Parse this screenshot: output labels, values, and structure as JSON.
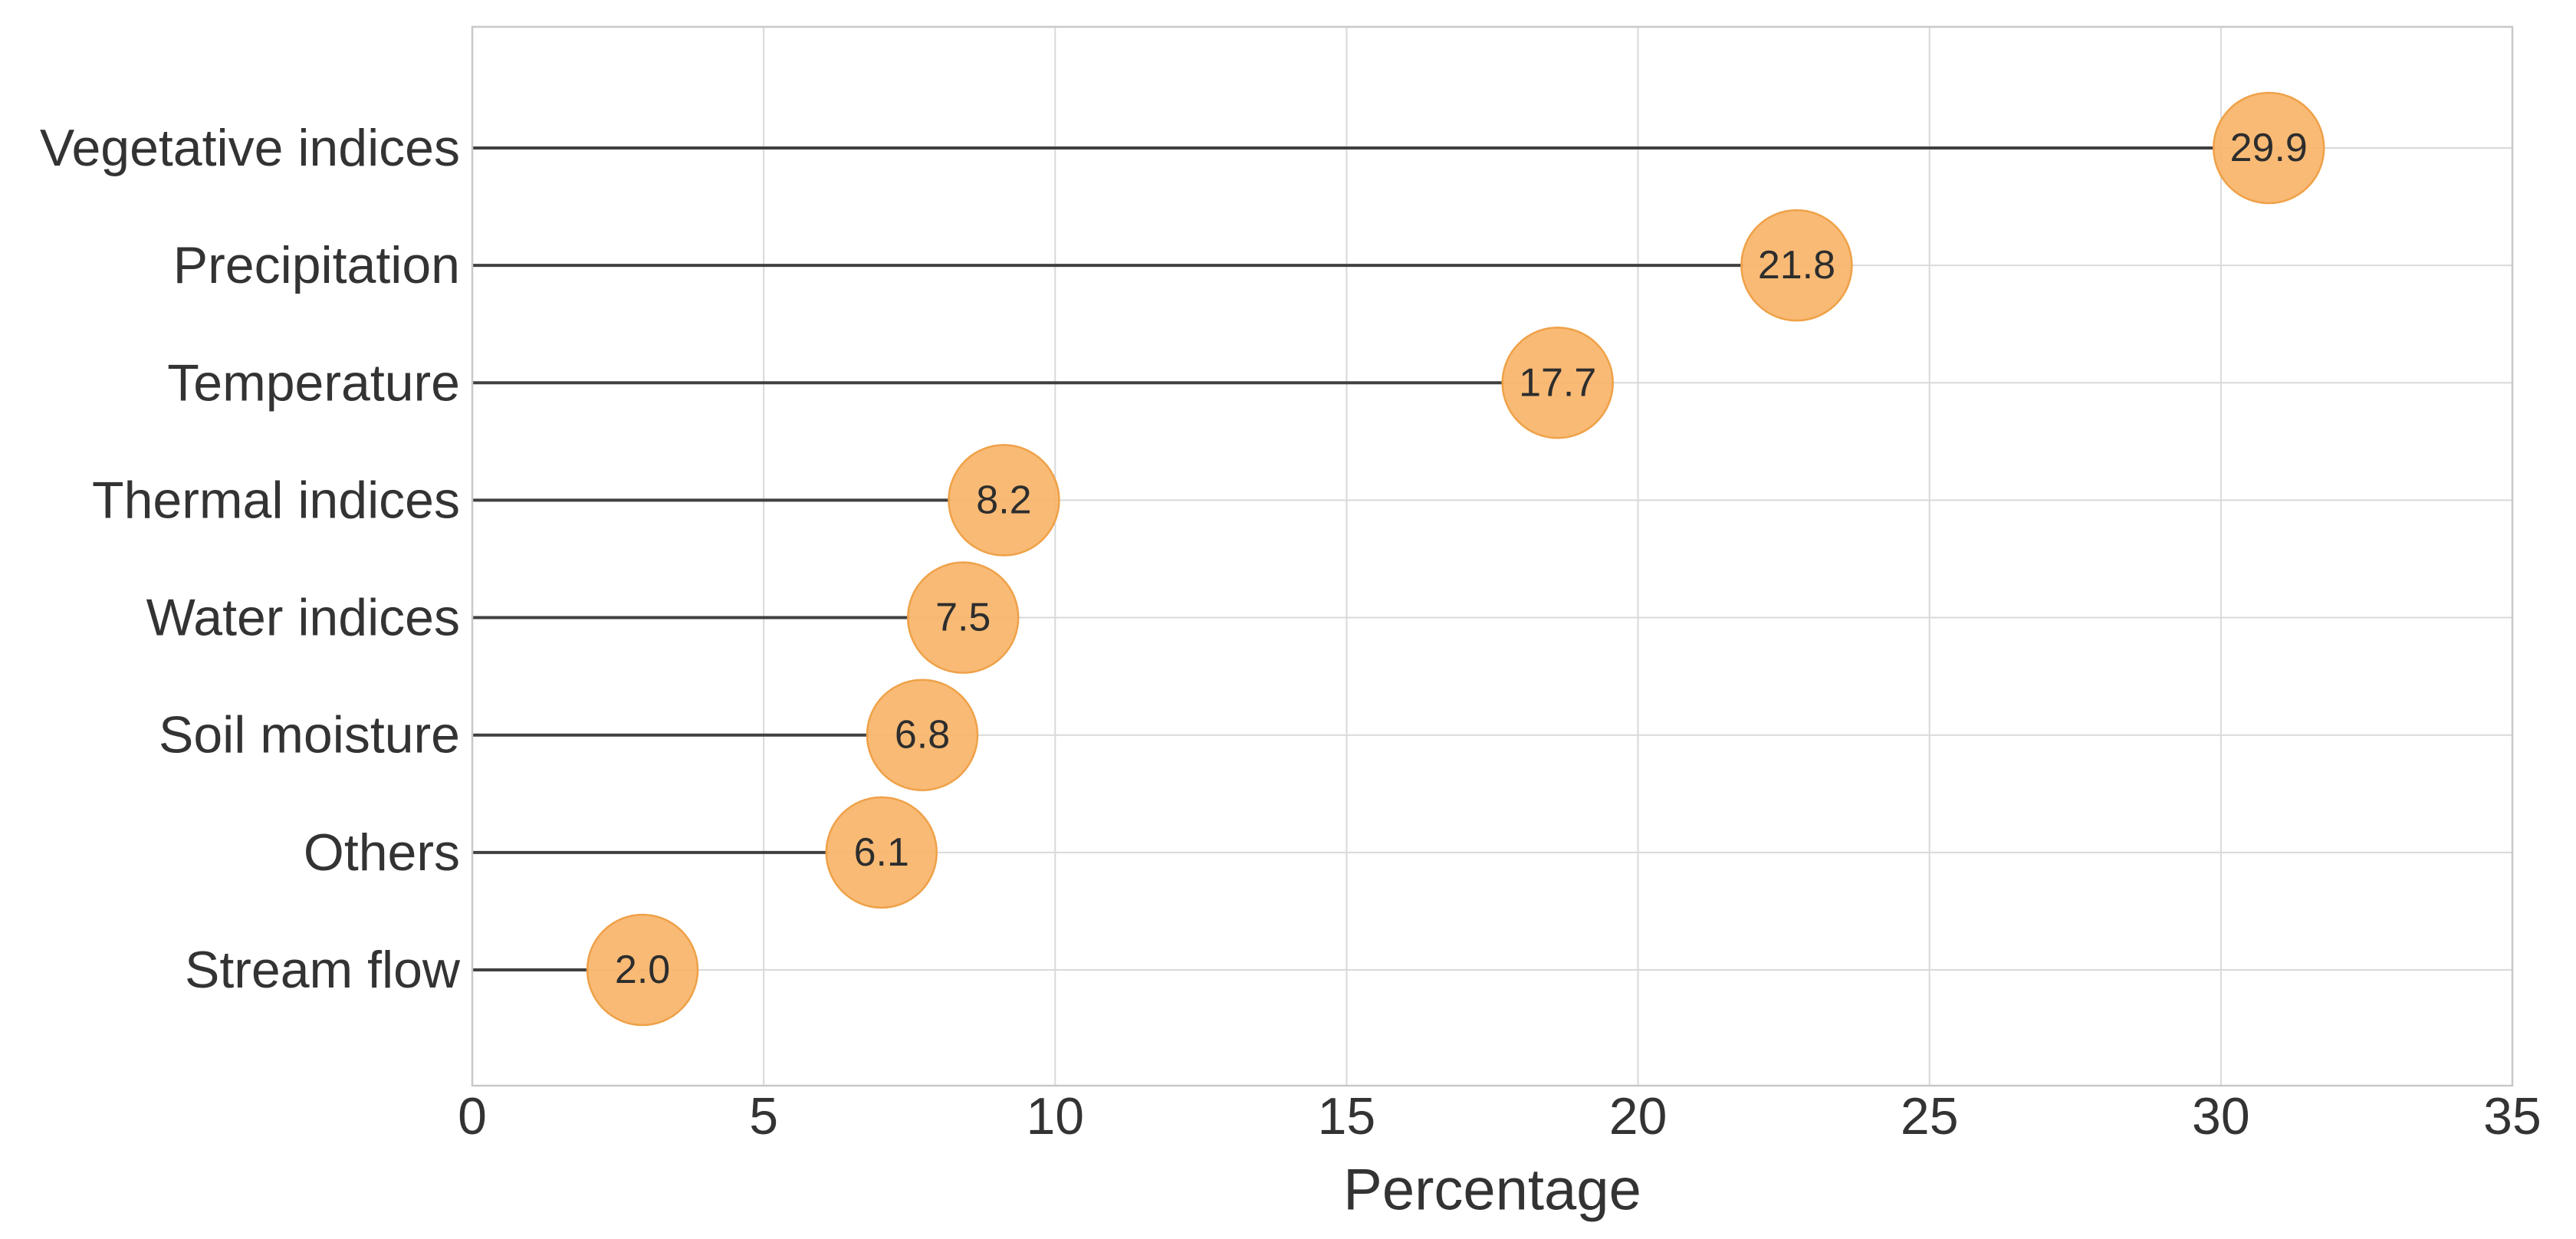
{
  "chart_data": {
    "type": "scatter",
    "variant": "horizontal-lollipop",
    "categories": [
      "Vegetative indices",
      "Precipitation",
      "Temperature",
      "Thermal indices",
      "Water indices",
      "Soil moisture",
      "Others",
      "Stream flow"
    ],
    "values": [
      29.9,
      21.8,
      17.7,
      8.2,
      7.5,
      6.8,
      6.1,
      2.0
    ],
    "value_labels": [
      "29.9",
      "21.8",
      "17.7",
      "8.2",
      "7.5",
      "6.8",
      "6.1",
      "2.0"
    ],
    "title": "",
    "xlabel": "Percentage",
    "ylabel": "",
    "xlim": [
      0,
      35
    ],
    "xticks": [
      0,
      5,
      10,
      15,
      20,
      25,
      30,
      35
    ],
    "grid": true,
    "legend": "none",
    "colors": {
      "marker_fill": "#f7b266",
      "marker_edge": "#efa148",
      "stem": "#404040",
      "gridline": "#d9d9d9",
      "plot_border": "#c8c8c8",
      "label_text": "#333333",
      "bubble_text": "#2d2d2d",
      "background": "#ffffff"
    }
  }
}
